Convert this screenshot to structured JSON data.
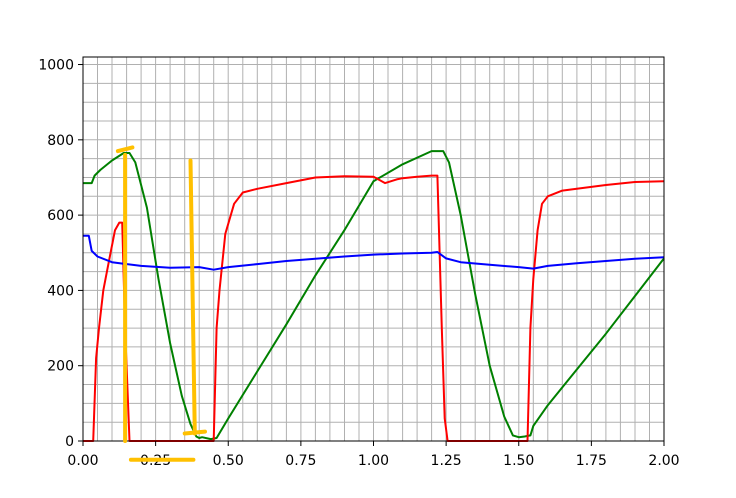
{
  "chart_data": {
    "type": "line",
    "title": "",
    "xlabel": "",
    "ylabel": "",
    "xlim": [
      0,
      2.0
    ],
    "ylim": [
      0,
      1020
    ],
    "grid": true,
    "x_ticks": [
      0.0,
      0.25,
      0.5,
      0.75,
      1.0,
      1.25,
      1.5,
      1.75,
      2.0
    ],
    "x_tick_labels": [
      "0.00",
      "0.25",
      "0.50",
      "0.75",
      "1.00",
      "1.25",
      "1.50",
      "1.75",
      "2.00"
    ],
    "y_ticks": [
      0,
      200,
      400,
      600,
      800,
      1000
    ],
    "y_tick_labels": [
      "0",
      "200",
      "400",
      "600",
      "800",
      "1000"
    ],
    "x_minor_step": 0.05,
    "y_minor_step": 50,
    "series": [
      {
        "color": "#008000",
        "x": [
          0.0,
          0.03,
          0.04,
          0.06,
          0.1,
          0.14,
          0.16,
          0.18,
          0.22,
          0.26,
          0.3,
          0.34,
          0.37,
          0.39,
          0.4,
          0.41,
          0.44,
          0.46,
          0.5,
          0.6,
          0.7,
          0.8,
          0.9,
          1.0,
          1.1,
          1.2,
          1.22,
          1.24,
          1.26,
          1.3,
          1.35,
          1.4,
          1.45,
          1.48,
          1.5,
          1.52,
          1.54,
          1.55,
          1.6,
          1.7,
          1.8,
          1.9,
          2.0
        ],
        "y": [
          685,
          685,
          705,
          720,
          745,
          765,
          765,
          740,
          620,
          430,
          260,
          120,
          45,
          12,
          8,
          10,
          5,
          8,
          60,
          185,
          310,
          440,
          560,
          690,
          735,
          770,
          770,
          770,
          740,
          600,
          390,
          200,
          65,
          15,
          10,
          12,
          15,
          40,
          95,
          190,
          285,
          385,
          485
        ]
      },
      {
        "color": "#ff0000",
        "x": [
          0.0,
          0.035,
          0.045,
          0.055,
          0.07,
          0.09,
          0.11,
          0.125,
          0.135,
          0.145,
          0.16,
          0.2,
          0.3,
          0.4,
          0.45,
          0.46,
          0.47,
          0.49,
          0.52,
          0.55,
          0.6,
          0.7,
          0.8,
          0.9,
          1.0,
          1.04,
          1.08,
          1.1,
          1.15,
          1.2,
          1.22,
          1.235,
          1.245,
          1.255,
          1.3,
          1.4,
          1.5,
          1.53,
          1.54,
          1.55,
          1.565,
          1.58,
          1.6,
          1.65,
          1.7,
          1.8,
          1.9,
          2.0
        ],
        "y": [
          0,
          0,
          220,
          300,
          400,
          480,
          560,
          580,
          580,
          300,
          0,
          0,
          0,
          0,
          0,
          300,
          400,
          550,
          630,
          660,
          670,
          685,
          700,
          703,
          702,
          685,
          695,
          698,
          702,
          705,
          705,
          300,
          60,
          0,
          0,
          0,
          0,
          0,
          300,
          430,
          560,
          630,
          650,
          665,
          670,
          680,
          688,
          690
        ]
      },
      {
        "color": "#0000ff",
        "x": [
          0.0,
          0.02,
          0.03,
          0.05,
          0.1,
          0.15,
          0.2,
          0.3,
          0.4,
          0.45,
          0.5,
          0.6,
          0.7,
          0.8,
          0.9,
          1.0,
          1.1,
          1.2,
          1.22,
          1.25,
          1.3,
          1.4,
          1.5,
          1.55,
          1.6,
          1.7,
          1.8,
          1.9,
          2.0
        ],
        "y": [
          545,
          545,
          505,
          490,
          475,
          470,
          465,
          460,
          462,
          455,
          462,
          470,
          478,
          484,
          490,
          495,
          498,
          500,
          502,
          485,
          475,
          468,
          462,
          458,
          465,
          472,
          478,
          484,
          488
        ]
      }
    ],
    "annotations": [
      {
        "kind": "stroke",
        "color": "#ffc000",
        "x": [
          0.145,
          0.145
        ],
        "y": [
          0,
          760
        ]
      },
      {
        "kind": "stroke",
        "color": "#ffc000",
        "x": [
          0.12,
          0.17
        ],
        "y": [
          770,
          780
        ]
      },
      {
        "kind": "stroke",
        "color": "#ffc000",
        "x": [
          0.37,
          0.385
        ],
        "y": [
          745,
          20
        ]
      },
      {
        "kind": "stroke",
        "color": "#ffc000",
        "x": [
          0.35,
          0.42
        ],
        "y": [
          20,
          25
        ]
      },
      {
        "kind": "stroke",
        "color": "#ffc000",
        "x": [
          0.165,
          0.38
        ],
        "y": [
          -50,
          -50
        ]
      }
    ]
  }
}
